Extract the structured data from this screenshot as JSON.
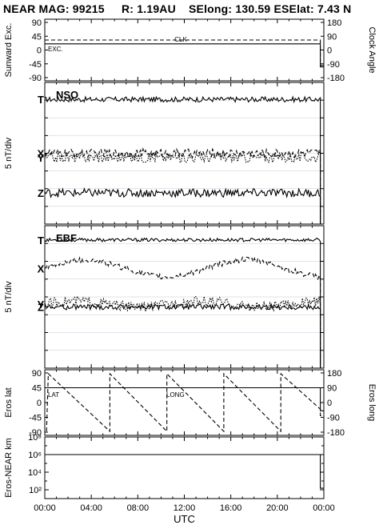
{
  "header": {
    "mission": "NEAR MAG: 99215",
    "range": "R: 1.19AU",
    "selong": "SElong:  130.59 E",
    "selat": "SElat:    7.43 N"
  },
  "x_axis": {
    "label": "UTC",
    "range_hours": [
      0,
      24
    ],
    "tick_labels": [
      "00:00",
      "04:00",
      "08:00",
      "12:00",
      "16:00",
      "20:00",
      "00:00"
    ]
  },
  "chart_data": [
    {
      "type": "line",
      "panel": "sunward",
      "ylabel": "Sunward Exc.",
      "ylim": [
        -90,
        90
      ],
      "yticks": [
        "90",
        "45",
        "0",
        "-45",
        "-90"
      ],
      "y2label": "Clock Angle",
      "y2lim": [
        -180,
        180
      ],
      "y2ticks": [
        "180",
        "90",
        "0",
        "-90",
        "-180"
      ],
      "labels": {
        "exc": "EXC.",
        "clk": "CLK"
      },
      "series": [
        {
          "name": "EXC.",
          "style": "solid",
          "x": [
            0,
            23.7,
            23.7,
            24
          ],
          "y": [
            20,
            20,
            -55,
            -55
          ]
        },
        {
          "name": "CLK",
          "style": "dashed",
          "axis": "right",
          "x": [
            0,
            23.7,
            23.7,
            24
          ],
          "y": [
            65,
            65,
            -100,
            -100
          ]
        }
      ]
    },
    {
      "type": "line",
      "panel": "NSO",
      "title": "NSO",
      "ylabel": "5 nT/div",
      "labels": [
        "T",
        "X",
        "Y",
        "Z"
      ],
      "series": [
        {
          "name": "T",
          "style": "solid",
          "level": 0.88,
          "noise": 0.018
        },
        {
          "name": "X",
          "style": "dashed",
          "level": 0.5,
          "noise": 0.03
        },
        {
          "name": "Y",
          "style": "dotted",
          "level": 0.47,
          "noise": 0.035
        },
        {
          "name": "Z",
          "style": "solid",
          "level": 0.22,
          "noise": 0.03
        }
      ]
    },
    {
      "type": "line",
      "panel": "EBF",
      "title": "EBF",
      "ylabel": "5 nT/div",
      "labels": [
        "T",
        "X",
        "Y",
        "Z"
      ],
      "series": [
        {
          "name": "T",
          "style": "solid",
          "level": 0.9,
          "noise": 0.012
        },
        {
          "name": "X",
          "style": "dashed",
          "level": 0.7,
          "noise": 0.02
        },
        {
          "name": "Y",
          "style": "dotted",
          "level": 0.45,
          "noise": 0.035
        },
        {
          "name": "Z",
          "style": "solid",
          "level": 0.43,
          "noise": 0.02
        }
      ]
    },
    {
      "type": "line",
      "panel": "eros",
      "ylabel": "Eros lat",
      "ylim": [
        -90,
        90
      ],
      "yticks": [
        "90",
        "45",
        "0",
        "-45",
        "-90"
      ],
      "y2label": "Eros long",
      "y2lim": [
        -180,
        180
      ],
      "y2ticks": [
        "180",
        "90",
        "0",
        "-90",
        "-180"
      ],
      "labels": {
        "lat": "LAT",
        "long": "LONG"
      },
      "series": [
        {
          "name": "LAT",
          "style": "solid",
          "x": [
            0,
            23.7,
            23.7,
            24
          ],
          "y": [
            45,
            45,
            -25,
            -25
          ]
        },
        {
          "name": "LONG",
          "style": "dashed",
          "axis": "right",
          "x": [
            0.15,
            0.3,
            5.6,
            5.6,
            10.5,
            10.5,
            15.4,
            15.4,
            20.3,
            20.3,
            23.7,
            23.7,
            24
          ],
          "y": [
            -175,
            175,
            -175,
            175,
            -175,
            175,
            -175,
            175,
            -175,
            175,
            -40,
            -80,
            -80
          ]
        }
      ]
    },
    {
      "type": "line",
      "panel": "distance",
      "ylabel": "Eros-NEAR km",
      "scale": "log",
      "ylim": [
        10,
        100000000
      ],
      "yticks": [
        "10⁸",
        "10⁶",
        "10⁴",
        "10²"
      ],
      "series": [
        {
          "name": "distance",
          "style": "solid",
          "x": [
            0,
            23.7,
            23.7,
            24
          ],
          "y": [
            1000000,
            1000000,
            150,
            150
          ]
        }
      ]
    }
  ]
}
